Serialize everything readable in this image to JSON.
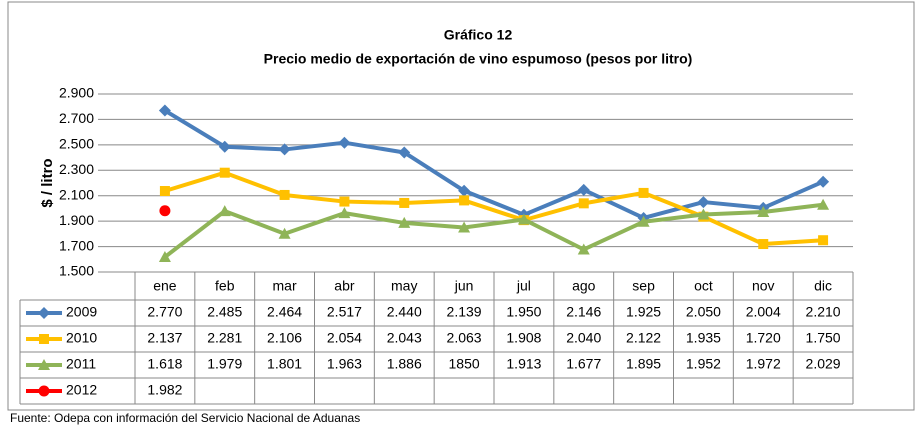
{
  "chart_data": {
    "type": "line",
    "title": "Gráfico 12",
    "subtitle": "Precio medio de exportación de vino espumoso (pesos por litro)",
    "y_label": "$ / litro",
    "source": "Fuente: Odepa con información del Servicio Nacional de Aduanas",
    "categories": [
      "ene",
      "feb",
      "mar",
      "abr",
      "may",
      "jun",
      "jul",
      "ago",
      "sep",
      "oct",
      "nov",
      "dic"
    ],
    "ylim": [
      1500,
      2900
    ],
    "yticks": [
      {
        "value": 1500,
        "label": "1.500"
      },
      {
        "value": 1700,
        "label": "1.700"
      },
      {
        "value": 1900,
        "label": "1.900"
      },
      {
        "value": 2100,
        "label": "2.100"
      },
      {
        "value": 2300,
        "label": "2.300"
      },
      {
        "value": 2500,
        "label": "2.500"
      },
      {
        "value": 2700,
        "label": "2.700"
      },
      {
        "value": 2900,
        "label": "2.900"
      }
    ],
    "grid": true,
    "series": [
      {
        "name": "2009",
        "color": "#4a7ebb",
        "marker": "diamond",
        "values": [
          2770,
          2485,
          2464,
          2517,
          2440,
          2139,
          1950,
          2146,
          1925,
          2050,
          2004,
          2210
        ],
        "value_labels": [
          "2.770",
          "2.485",
          "2.464",
          "2.517",
          "2.440",
          "2.139",
          "1.950",
          "2.146",
          "1.925",
          "2.050",
          "2.004",
          "2.210"
        ]
      },
      {
        "name": "2010",
        "color": "#ffc000",
        "marker": "square",
        "values": [
          2137,
          2281,
          2106,
          2054,
          2043,
          2063,
          1908,
          2040,
          2122,
          1935,
          1720,
          1750
        ],
        "value_labels": [
          "2.137",
          "2.281",
          "2.106",
          "2.054",
          "2.043",
          "2.063",
          "1.908",
          "2.040",
          "2.122",
          "1.935",
          "1.720",
          "1.750"
        ]
      },
      {
        "name": "2011",
        "color": "#8fb458",
        "marker": "triangle",
        "values": [
          1618,
          1979,
          1801,
          1963,
          1886,
          1850,
          1913,
          1677,
          1895,
          1952,
          1972,
          2029
        ],
        "value_labels": [
          "1.618",
          "1.979",
          "1.801",
          "1.963",
          "1.886",
          "1850",
          "1.913",
          "1.677",
          "1.895",
          "1.952",
          "1.972",
          "2.029"
        ]
      },
      {
        "name": "2012",
        "color": "#ff0000",
        "marker": "circle",
        "values": [
          1982,
          null,
          null,
          null,
          null,
          null,
          null,
          null,
          null,
          null,
          null,
          null
        ],
        "value_labels": [
          "1.982",
          null,
          null,
          null,
          null,
          null,
          null,
          null,
          null,
          null,
          null,
          null
        ]
      }
    ]
  }
}
